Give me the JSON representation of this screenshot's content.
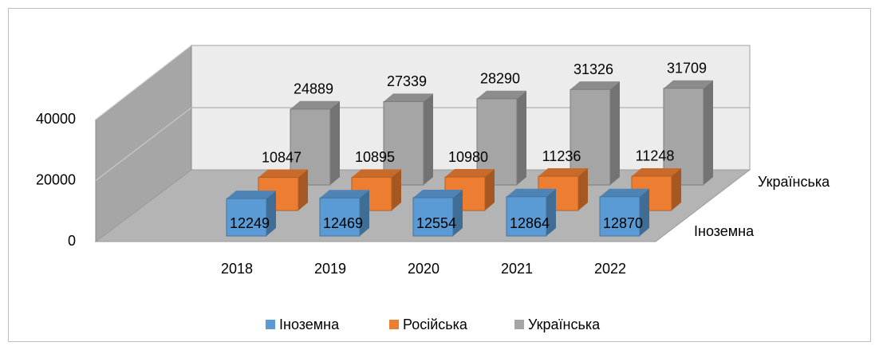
{
  "chart_data": {
    "type": "bar3d",
    "categories": [
      "2018",
      "2019",
      "2020",
      "2021",
      "2022"
    ],
    "series": [
      {
        "name": "Іноземна",
        "color": "#5b9bd5",
        "values": [
          12249,
          12469,
          12554,
          12864,
          12870
        ]
      },
      {
        "name": "Російська",
        "color": "#ed7d31",
        "values": [
          10847,
          10895,
          10980,
          11236,
          11248
        ]
      },
      {
        "name": "Українська",
        "color": "#a5a5a5",
        "values": [
          24889,
          27339,
          28290,
          31326,
          31709
        ]
      }
    ],
    "ylim": [
      0,
      40000
    ],
    "yticks": [
      0,
      20000,
      40000
    ],
    "grid": true,
    "legend": "bottom"
  }
}
